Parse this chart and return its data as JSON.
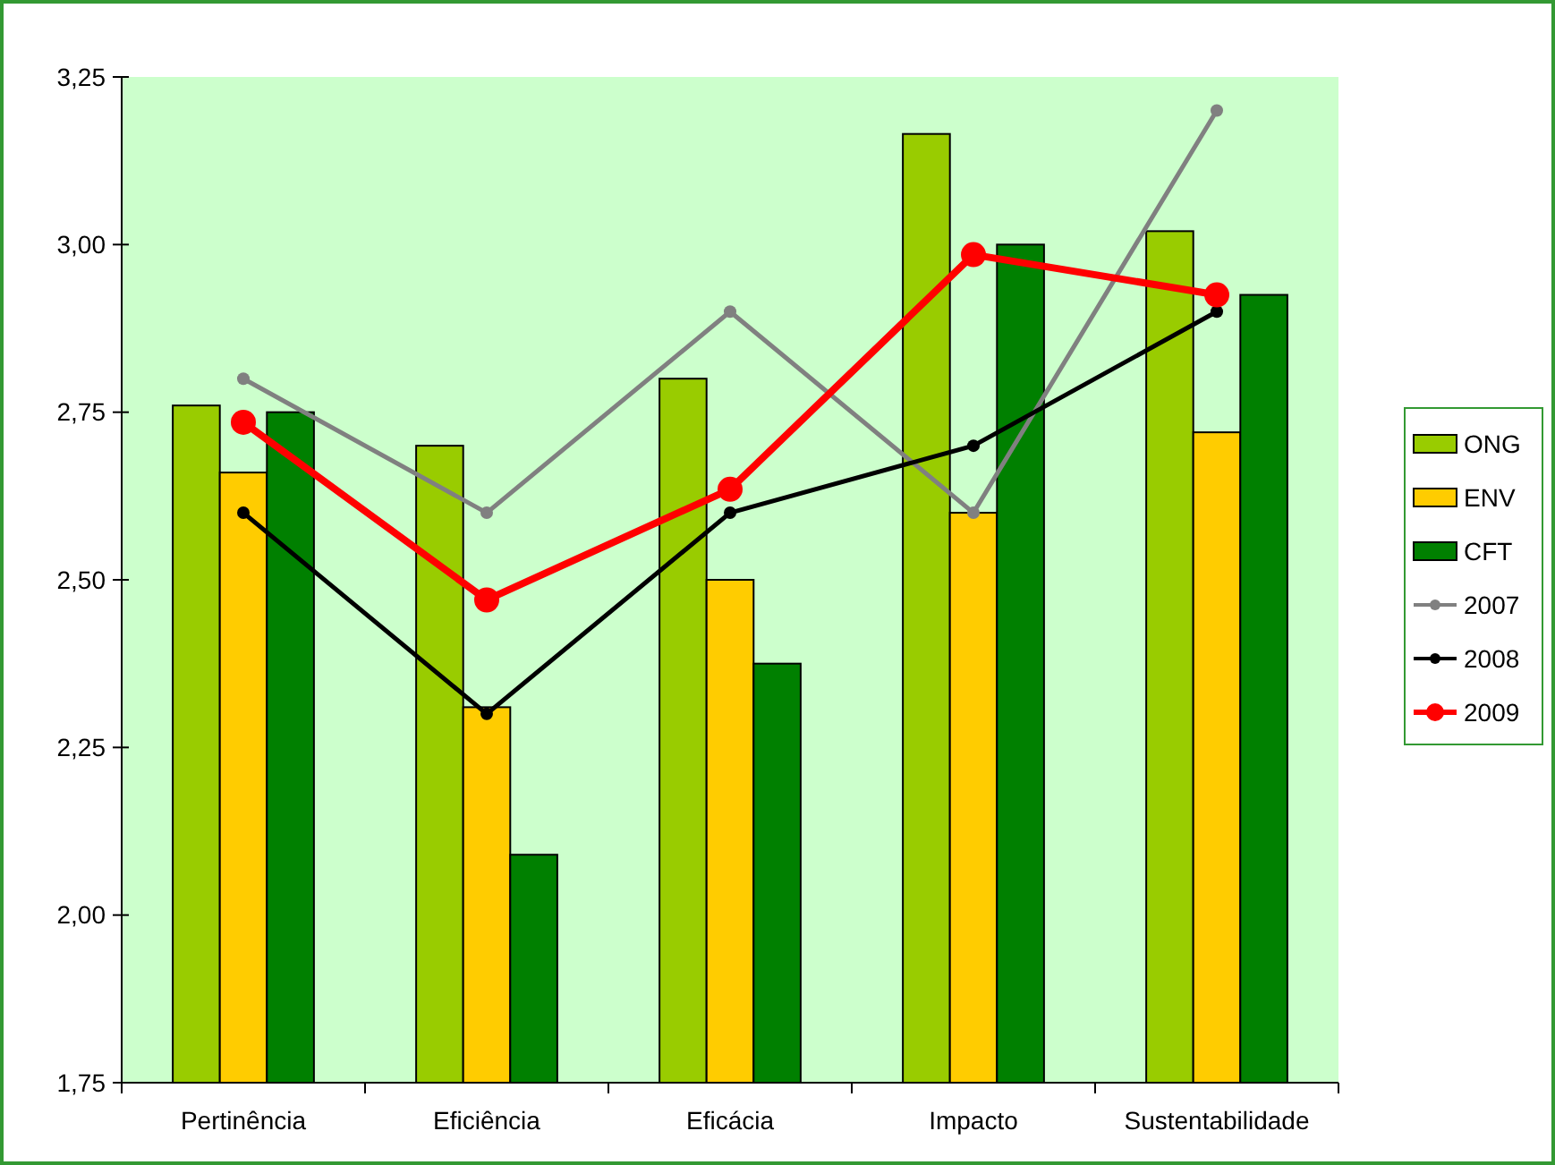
{
  "chart_data": {
    "type": "bar",
    "categories": [
      "Pertinência",
      "Eficiência",
      "Eficácia",
      "Impacto",
      "Sustentabilidade"
    ],
    "ylim": [
      1.75,
      3.25
    ],
    "yticks": [
      {
        "value": 1.75,
        "label": "1,75"
      },
      {
        "value": 2,
        "label": "2,00"
      },
      {
        "value": 2.25,
        "label": "2,25"
      },
      {
        "value": 2.5,
        "label": "2,50"
      },
      {
        "value": 2.75,
        "label": "2,75"
      },
      {
        "value": 3,
        "label": "3,00"
      },
      {
        "value": 3.25,
        "label": "3,25"
      }
    ],
    "grid": false,
    "legend": "right",
    "marker": "circle",
    "series": [
      {
        "name": "ONG",
        "color": "#99cc00",
        "values": [
          2.76,
          2.7,
          2.8,
          3.165,
          3.02
        ]
      },
      {
        "name": "ENV",
        "color": "#ffcc00",
        "values": [
          2.66,
          2.31,
          2.5,
          2.6,
          2.72
        ]
      },
      {
        "name": "CFT",
        "color": "#008000",
        "values": [
          2.75,
          2.09,
          2.375,
          3.0,
          2.925
        ]
      },
      {
        "name": "2007",
        "type": "line",
        "color": "#808080",
        "values": [
          2.8,
          2.6,
          2.9,
          2.6,
          3.2
        ]
      },
      {
        "name": "2008",
        "type": "line",
        "color": "#000000",
        "values": [
          2.6,
          2.3,
          2.6,
          2.7,
          2.9
        ]
      },
      {
        "name": "2009",
        "type": "line",
        "color": "#ff0000",
        "values": [
          2.735,
          2.47,
          2.635,
          2.985,
          2.925
        ]
      }
    ]
  }
}
